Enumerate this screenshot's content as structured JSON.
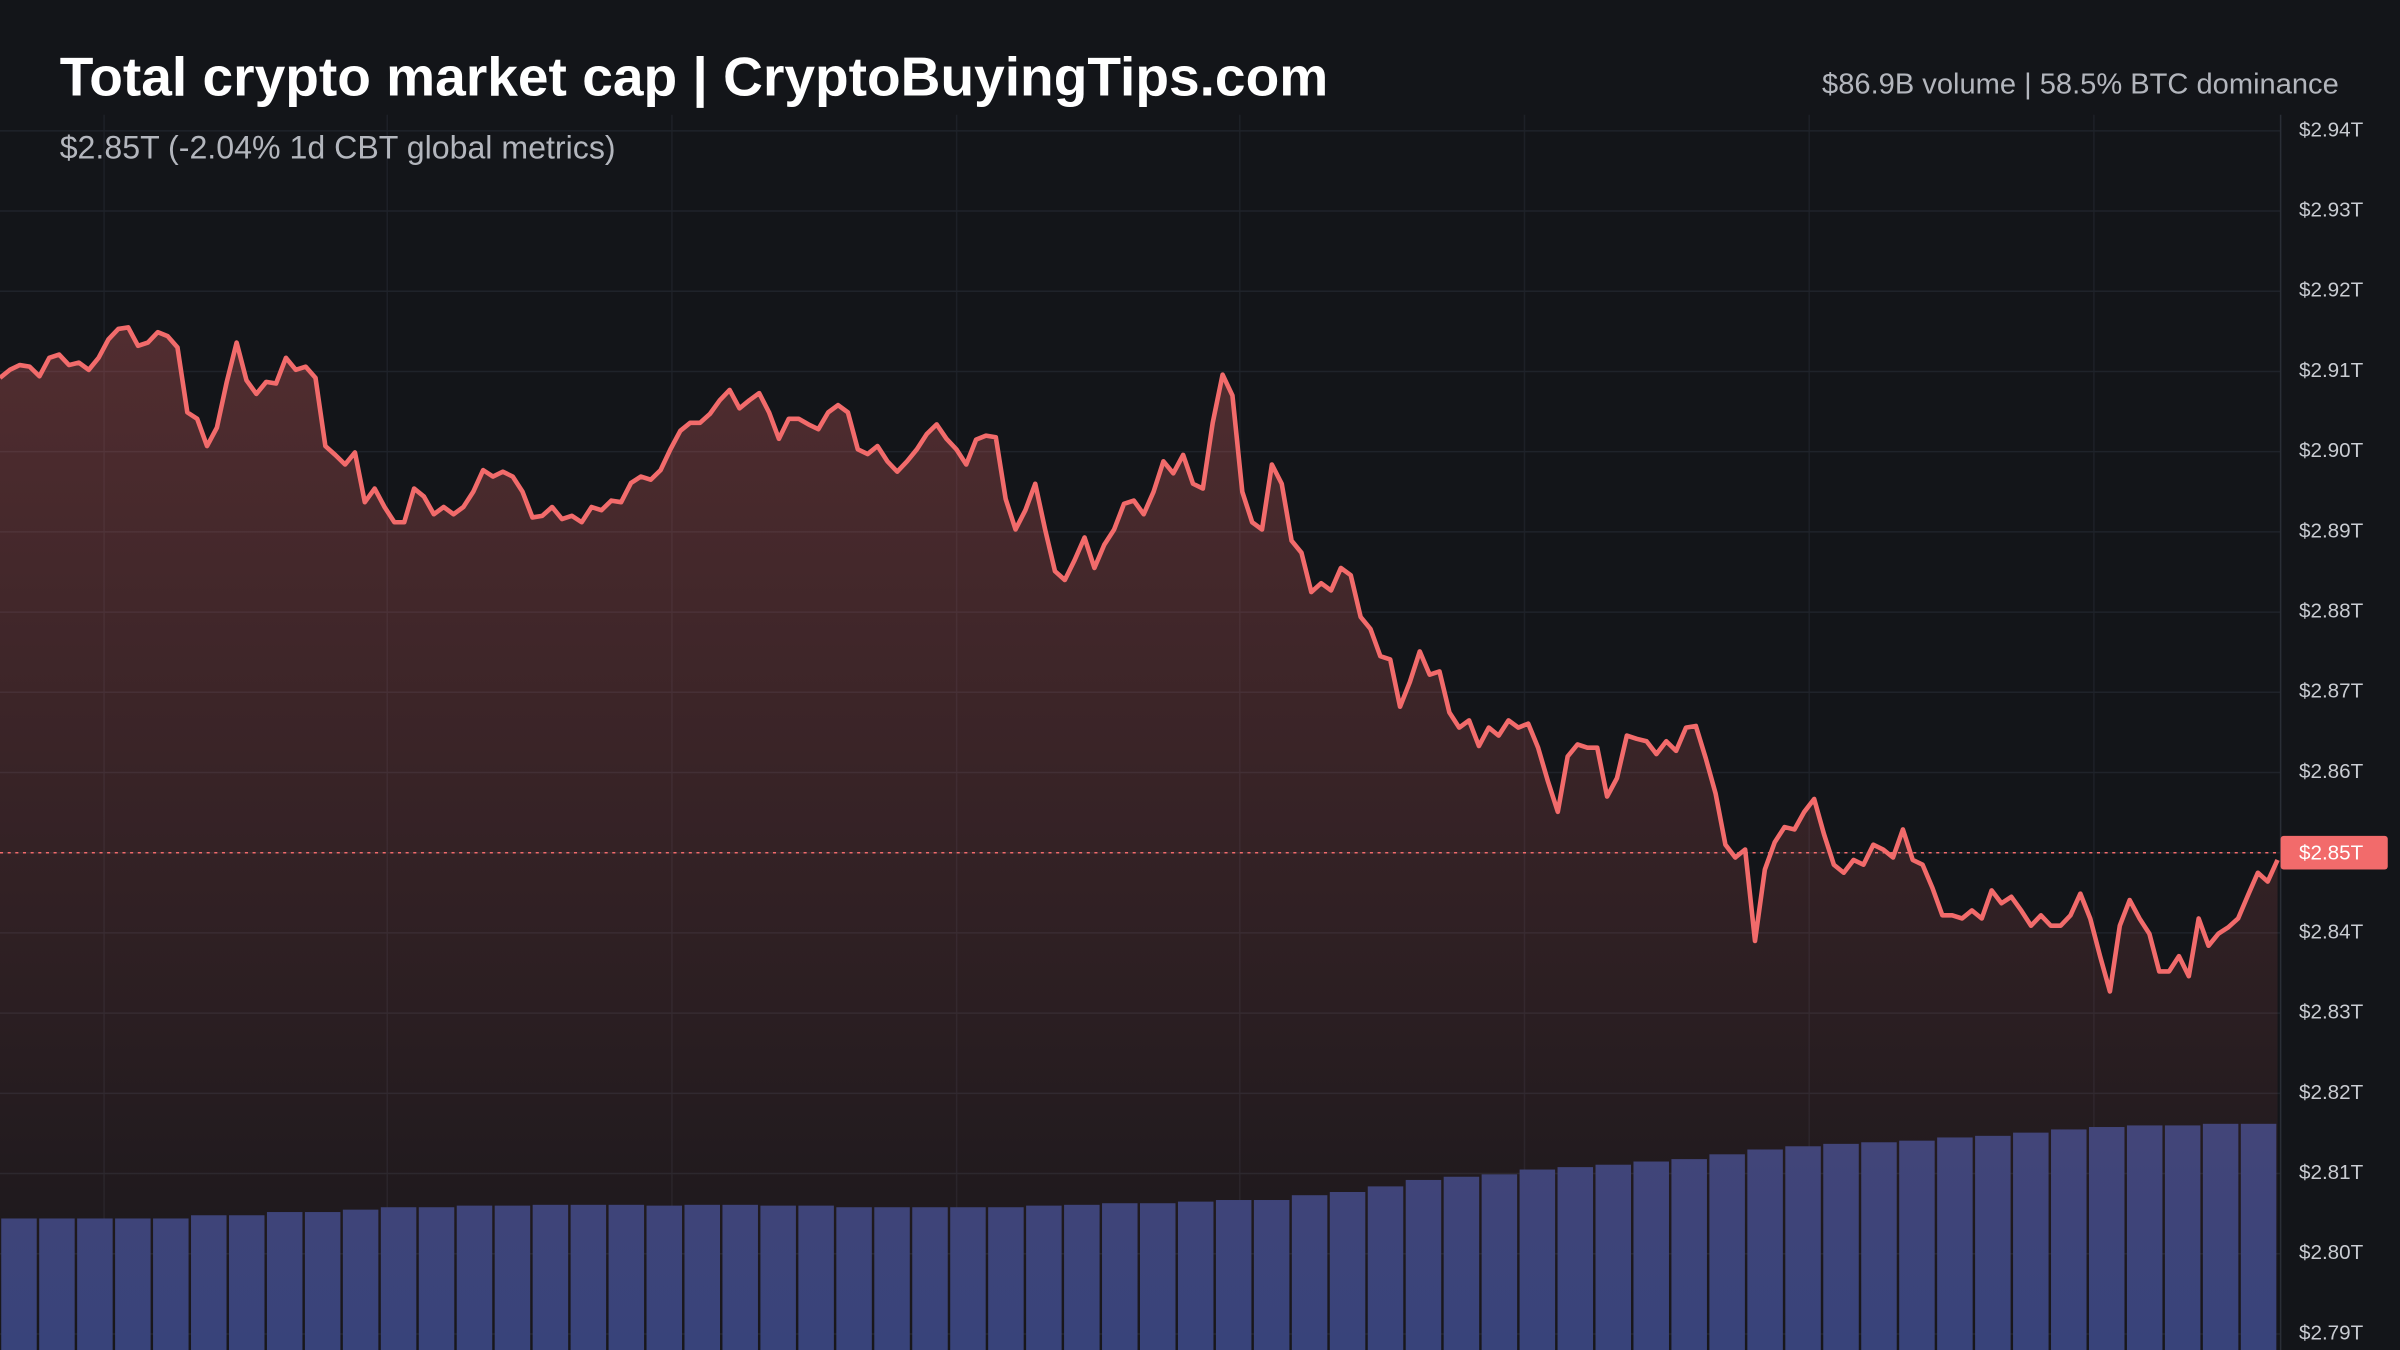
{
  "chart_data": {
    "type": "line",
    "title": "Total crypto market cap | CryptoBuyingTips.com",
    "subtitle": "$2.85T (-2.04% 1d CBT global metrics)",
    "annotation": "$86.9B volume | 58.5% BTC dominance",
    "ylim": [
      2.788,
      2.942
    ],
    "yticks": [
      {
        "value": 2.94,
        "label": "$2.94T"
      },
      {
        "value": 2.93,
        "label": "$2.93T"
      },
      {
        "value": 2.92,
        "label": "$2.92T"
      },
      {
        "value": 2.91,
        "label": "$2.91T"
      },
      {
        "value": 2.9,
        "label": "$2.90T"
      },
      {
        "value": 2.89,
        "label": "$2.89T"
      },
      {
        "value": 2.88,
        "label": "$2.88T"
      },
      {
        "value": 2.87,
        "label": "$2.87T"
      },
      {
        "value": 2.86,
        "label": "$2.86T"
      },
      {
        "value": 2.85,
        "label": "$2.85T"
      },
      {
        "value": 2.84,
        "label": "$2.84T"
      },
      {
        "value": 2.83,
        "label": "$2.83T"
      },
      {
        "value": 2.82,
        "label": "$2.82T"
      },
      {
        "value": 2.81,
        "label": "$2.81T"
      },
      {
        "value": 2.8,
        "label": "$2.80T"
      },
      {
        "value": 2.79,
        "label": "$2.79T"
      }
    ],
    "grid": true,
    "price_line": {
      "value": 2.85,
      "label": "$2.85T",
      "color": "#f26b6b"
    },
    "series": [
      {
        "name": "Market cap",
        "color": "#f26b6b",
        "values": [
          2.9092,
          2.9102,
          2.9108,
          2.9106,
          2.9094,
          2.9117,
          2.9121,
          2.9108,
          2.9111,
          2.9102,
          2.9117,
          2.914,
          2.9153,
          2.9155,
          2.9132,
          2.9136,
          2.9149,
          2.9144,
          2.913,
          2.9049,
          2.9041,
          2.9007,
          2.903,
          2.9087,
          2.9136,
          2.9089,
          2.9072,
          2.9087,
          2.9085,
          2.9117,
          2.9102,
          2.9106,
          2.9092,
          2.9007,
          2.8996,
          2.8984,
          2.8999,
          2.8937,
          2.8954,
          2.8931,
          2.8912,
          2.8912,
          2.8954,
          2.8944,
          2.8922,
          2.8931,
          2.8922,
          2.8931,
          2.895,
          2.8977,
          2.8969,
          2.8975,
          2.8969,
          2.895,
          2.8918,
          2.892,
          2.8931,
          2.8916,
          2.892,
          2.8912,
          2.8931,
          2.8927,
          2.8939,
          2.8937,
          2.8961,
          2.8969,
          2.8965,
          2.8977,
          2.9003,
          2.9026,
          2.9036,
          2.9036,
          2.9047,
          2.9064,
          2.9077,
          2.9054,
          2.9064,
          2.9073,
          2.9049,
          2.9016,
          2.9041,
          2.9041,
          2.9034,
          2.9028,
          2.9049,
          2.9058,
          2.9049,
          2.9003,
          2.8997,
          2.9007,
          2.8988,
          2.8975,
          2.8988,
          2.9003,
          2.9022,
          2.9034,
          2.9016,
          2.9003,
          2.8984,
          2.9015,
          2.902,
          2.9018,
          2.8941,
          2.8903,
          2.8927,
          2.896,
          2.8903,
          2.8851,
          2.884,
          2.8865,
          2.8893,
          2.8855,
          2.8884,
          2.8903,
          2.8935,
          2.8939,
          2.8922,
          2.895,
          2.8988,
          2.8973,
          2.8996,
          2.896,
          2.8954,
          2.9036,
          2.9096,
          2.907,
          2.895,
          2.8912,
          2.8903,
          2.8984,
          2.896,
          2.8889,
          2.8874,
          2.8825,
          2.8836,
          2.8827,
          2.8855,
          2.8846,
          2.8794,
          2.8779,
          2.8745,
          2.8741,
          2.8682,
          2.8713,
          2.8751,
          2.8722,
          2.8726,
          2.8675,
          2.8656,
          2.8665,
          2.8633,
          2.8656,
          2.8646,
          2.8665,
          2.8656,
          2.8661,
          2.8631,
          2.8589,
          2.8551,
          2.862,
          2.8635,
          2.8631,
          2.8631,
          2.857,
          2.8593,
          2.8646,
          2.8642,
          2.8639,
          2.8623,
          2.8639,
          2.8627,
          2.8656,
          2.8658,
          2.8618,
          2.8574,
          2.851,
          2.8494,
          2.8504,
          2.839,
          2.8479,
          2.8513,
          2.8532,
          2.8529,
          2.8551,
          2.8567,
          2.8523,
          2.8485,
          2.8475,
          2.8491,
          2.8485,
          2.851,
          2.8504,
          2.8494,
          2.8529,
          2.8491,
          2.8485,
          2.8456,
          2.8422,
          2.8422,
          2.8418,
          2.8428,
          2.8418,
          2.8453,
          2.8437,
          2.8445,
          2.8428,
          2.8409,
          2.8422,
          2.8409,
          2.8409,
          2.8422,
          2.8449,
          2.8418,
          2.8371,
          2.8327,
          2.8409,
          2.8441,
          2.8418,
          2.8399,
          2.8352,
          2.8352,
          2.8371,
          2.8346,
          2.8418,
          2.8384,
          2.8399,
          2.8407,
          2.8418,
          2.8447,
          2.8475,
          2.8464,
          2.8491
        ]
      },
      {
        "name": "Volume",
        "color": "#34427a",
        "type": "bar",
        "values": [
          2.8044,
          2.8044,
          2.8044,
          2.8044,
          2.8044,
          2.8048,
          2.8048,
          2.8052,
          2.8052,
          2.8055,
          2.8058,
          2.8058,
          2.806,
          2.806,
          2.8061,
          2.8061,
          2.8061,
          2.806,
          2.8061,
          2.8061,
          2.806,
          2.806,
          2.8058,
          2.8058,
          2.8058,
          2.8058,
          2.8058,
          2.806,
          2.8061,
          2.8063,
          2.8063,
          2.8065,
          2.8067,
          2.8067,
          2.8073,
          2.8077,
          2.8084,
          2.8092,
          2.8096,
          2.8099,
          2.8105,
          2.8108,
          2.8111,
          2.8115,
          2.8118,
          2.8124,
          2.813,
          2.8134,
          2.8137,
          2.8139,
          2.8141,
          2.8145,
          2.8147,
          2.8151,
          2.8155,
          2.8158,
          2.816,
          2.816,
          2.8162,
          2.8162
        ]
      }
    ]
  }
}
